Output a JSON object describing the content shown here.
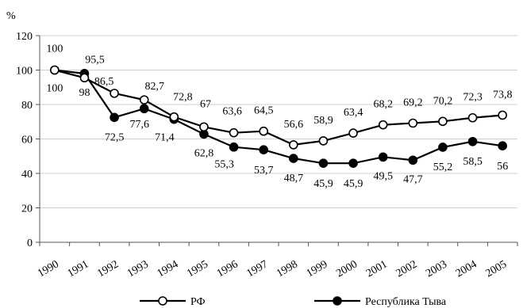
{
  "chart_data": {
    "type": "line",
    "ylabel": "%",
    "ylim": [
      0,
      120
    ],
    "yticks": [
      "0",
      "20",
      "40",
      "60",
      "80",
      "100",
      "120"
    ],
    "categories": [
      "1990",
      "1991",
      "1992",
      "1993",
      "1994",
      "1995",
      "1996",
      "1997",
      "1998",
      "1999",
      "2000",
      "2001",
      "2002",
      "2003",
      "2004",
      "2005"
    ],
    "grid": "horizontal",
    "legend_position": "bottom",
    "series": [
      {
        "name": "РФ",
        "marker": "open-circle",
        "color": "#000000",
        "values": [
          100,
          95.5,
          86.5,
          82.7,
          72.8,
          67,
          63.6,
          64.5,
          56.6,
          58.9,
          63.4,
          68.2,
          69.2,
          70.2,
          72.3,
          73.8
        ],
        "labels": [
          "100",
          "95,5",
          "86,5",
          "82,7",
          "72,8",
          "67",
          "63,6",
          "64,5",
          "56,6",
          "58,9",
          "63,4",
          "68,2",
          "69,2",
          "70,2",
          "72,3",
          "73,8"
        ]
      },
      {
        "name": "Республика Тыва",
        "marker": "filled-circle",
        "color": "#000000",
        "values": [
          100,
          98,
          72.5,
          77.6,
          71.4,
          62.8,
          55.3,
          53.7,
          48.7,
          45.9,
          45.9,
          49.5,
          47.7,
          55.2,
          58.5,
          56
        ],
        "labels": [
          "100",
          "98",
          "72,5",
          "77,6",
          "71,4",
          "62,8",
          "55,3",
          "53,7",
          "48,7",
          "45,9",
          "45,9",
          "49,5",
          "47,7",
          "55,2",
          "58,5",
          "56"
        ]
      }
    ]
  }
}
